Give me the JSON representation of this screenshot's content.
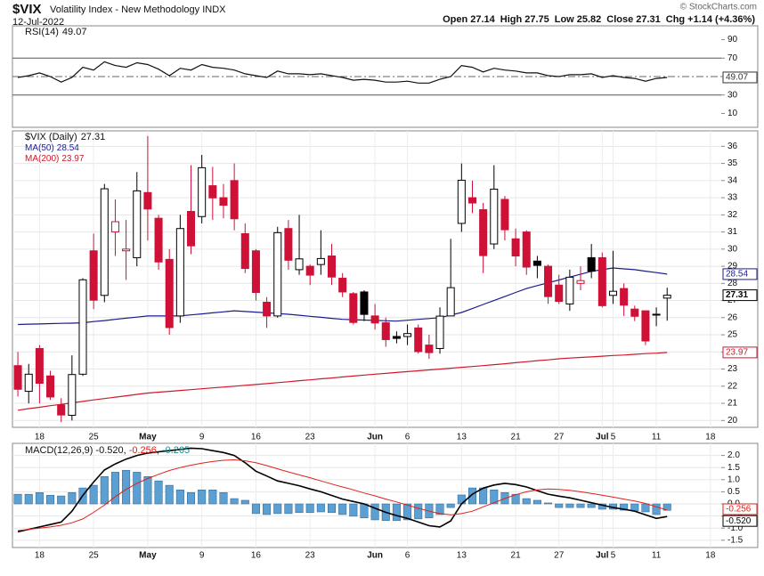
{
  "header": {
    "symbol": "$VIX",
    "name": "Volatility Index - New Methodology INDX",
    "date": "12-Jul-2022",
    "quote_labels": [
      "Open",
      "High",
      "Low",
      "Close",
      "Chg"
    ],
    "change": "+1.14 (+4.36%)",
    "credit": "© StockCharts.com"
  },
  "chart_data": [
    {
      "type": "line",
      "xlim": [
        -0.5,
        65
      ],
      "ylim": [
        -5,
        105
      ],
      "yticks": [
        10,
        30,
        50,
        70,
        90
      ],
      "bands": [
        30,
        70
      ],
      "centerline": 50,
      "series": [
        {
          "name": "RSI(14)",
          "color": "#111111",
          "values": [
            49,
            51,
            54,
            50,
            44,
            49,
            60,
            57,
            66,
            62,
            60,
            65,
            63,
            58,
            51,
            59,
            57,
            63,
            60,
            59,
            57,
            53,
            51,
            49,
            56,
            53,
            53,
            52,
            53,
            51,
            49,
            46,
            47,
            46,
            44,
            44,
            45,
            43,
            43,
            47,
            50,
            62,
            60,
            55,
            59,
            57,
            56,
            54,
            54,
            51,
            50,
            52,
            52,
            53,
            49,
            51,
            49,
            48,
            45,
            48,
            49.07
          ]
        }
      ]
    },
    {
      "type": "candlestick",
      "xlim": [
        -0.5,
        65
      ],
      "ylim": [
        19.6,
        36.9
      ],
      "grid": true,
      "yticks": [
        20,
        21,
        22,
        23,
        24,
        25,
        26,
        27,
        28,
        29,
        30,
        31,
        32,
        33,
        34,
        35,
        36
      ],
      "xticks": [
        {
          "value": 2,
          "label": "18"
        },
        {
          "value": 7,
          "label": "25"
        },
        {
          "value": 12,
          "label": "May"
        },
        {
          "value": 17,
          "label": "9"
        },
        {
          "value": 22,
          "label": "16"
        },
        {
          "value": 27,
          "label": "23"
        },
        {
          "value": 33,
          "label": "Jun"
        },
        {
          "value": 36,
          "label": "6"
        },
        {
          "value": 41,
          "label": "13"
        },
        {
          "value": 46,
          "label": "21"
        },
        {
          "value": 50,
          "label": "27"
        },
        {
          "value": 54,
          "label": "Jul"
        },
        {
          "value": 55,
          "label": "5"
        },
        {
          "value": 59,
          "label": "11"
        },
        {
          "value": 64,
          "label": "18"
        }
      ],
      "candles": {
        "name": "$VIX (Daily)",
        "up_color": "#000000",
        "down_color": "#cf1037",
        "open": [
          23.2,
          21.7,
          24.2,
          22.6,
          20.9,
          20.3,
          22.7,
          29.9,
          27.3,
          31.0,
          29.9,
          29.5,
          33.3,
          31.8,
          29.4,
          26.1,
          32.2,
          31.9,
          33.7,
          33.0,
          34.0,
          30.9,
          29.9,
          26.9,
          26.1,
          31.2,
          28.8,
          29.0,
          29.1,
          29.6,
          28.3,
          27.4,
          27.5,
          26.1,
          25.7,
          24.9,
          24.9,
          25.4,
          24.4,
          24.2,
          26.1,
          31.5,
          33.0,
          32.3,
          30.3,
          32.9,
          30.6,
          31.0,
          29.3,
          29.0,
          27.9,
          26.8,
          28.0,
          29.5,
          29.5,
          27.3,
          27.7,
          26.5,
          26.4,
          26.2,
          27.14
        ],
        "high": [
          24.0,
          23.3,
          24.4,
          22.9,
          21.3,
          23.8,
          28.3,
          30.9,
          33.8,
          32.9,
          31.7,
          34.5,
          36.6,
          32.0,
          30.0,
          32.0,
          34.9,
          35.5,
          34.8,
          33.8,
          35.0,
          31.5,
          30.0,
          27.2,
          31.3,
          31.7,
          32.0,
          29.1,
          31.1,
          30.3,
          28.6,
          27.5,
          27.6,
          26.8,
          26.0,
          25.2,
          25.6,
          25.6,
          25.0,
          26.6,
          30.6,
          35.0,
          34.0,
          32.7,
          34.9,
          33.1,
          31.2,
          31.1,
          29.6,
          29.1,
          28.5,
          28.8,
          29.0,
          30.3,
          29.8,
          29.9,
          28.0,
          26.7,
          26.4,
          26.6,
          27.75
        ],
        "low": [
          21.4,
          21.0,
          21.0,
          21.2,
          19.9,
          20.0,
          22.6,
          26.5,
          26.9,
          29.6,
          28.2,
          29.0,
          30.5,
          28.8,
          25.0,
          25.7,
          29.7,
          31.5,
          31.7,
          31.8,
          31.1,
          28.6,
          27.0,
          25.4,
          26.0,
          28.8,
          28.5,
          27.9,
          28.5,
          27.9,
          27.2,
          25.6,
          25.8,
          25.3,
          24.3,
          24.5,
          24.4,
          23.9,
          23.6,
          23.9,
          26.1,
          31.0,
          32.1,
          28.6,
          30.0,
          30.5,
          29.0,
          28.5,
          28.3,
          26.8,
          26.8,
          26.4,
          27.6,
          28.3,
          26.6,
          26.8,
          26.1,
          25.8,
          24.4,
          25.5,
          25.82
        ],
        "close": [
          21.82,
          22.7,
          22.17,
          21.37,
          20.32,
          22.68,
          28.21,
          27.02,
          33.52,
          31.6,
          30.0,
          33.4,
          32.34,
          29.25,
          25.42,
          31.2,
          30.19,
          34.75,
          32.99,
          32.56,
          31.77,
          28.87,
          27.47,
          26.1,
          30.96,
          29.35,
          29.43,
          28.48,
          29.45,
          28.37,
          27.5,
          25.72,
          26.19,
          25.69,
          24.72,
          24.79,
          25.07,
          24.02,
          23.96,
          26.09,
          27.75,
          34.02,
          32.69,
          29.62,
          33.5,
          31.13,
          29.6,
          28.95,
          29.05,
          27.23,
          26.95,
          28.36,
          28.16,
          28.71,
          26.7,
          27.54,
          26.73,
          26.08,
          24.64,
          26.17,
          27.31
        ]
      },
      "series": [
        {
          "name": "MA(50)",
          "color": "#1b1b8f",
          "values": [
            25.6,
            25.62,
            25.63,
            25.65,
            25.67,
            25.68,
            25.7,
            25.77,
            25.83,
            25.9,
            25.97,
            26.03,
            26.1,
            26.1,
            26.1,
            26.1,
            26.16,
            26.22,
            26.28,
            26.34,
            26.4,
            26.36,
            26.32,
            26.28,
            26.24,
            26.2,
            26.14,
            26.08,
            26.02,
            25.96,
            25.9,
            25.88,
            25.86,
            25.84,
            25.82,
            25.8,
            25.85,
            25.9,
            25.95,
            26.0,
            26.15,
            26.3,
            26.53,
            26.77,
            27.0,
            27.23,
            27.47,
            27.7,
            27.87,
            28.03,
            28.2,
            28.37,
            28.53,
            28.7,
            28.8,
            28.9,
            28.85,
            28.8,
            28.71,
            28.63,
            28.54
          ]
        },
        {
          "name": "MA(200)",
          "color": "#d0182c",
          "values": [
            20.6,
            20.69,
            20.77,
            20.86,
            20.94,
            21.03,
            21.11,
            21.2,
            21.28,
            21.36,
            21.44,
            21.52,
            21.6,
            21.65,
            21.7,
            21.75,
            21.8,
            21.85,
            21.9,
            21.95,
            22.0,
            22.05,
            22.1,
            22.15,
            22.21,
            22.26,
            22.32,
            22.37,
            22.43,
            22.48,
            22.54,
            22.59,
            22.65,
            22.7,
            22.75,
            22.8,
            22.85,
            22.9,
            22.95,
            23.0,
            23.05,
            23.1,
            23.15,
            23.2,
            23.26,
            23.31,
            23.37,
            23.43,
            23.49,
            23.54,
            23.6,
            23.64,
            23.68,
            23.71,
            23.75,
            23.79,
            23.82,
            23.86,
            23.9,
            23.93,
            23.97
          ]
        }
      ]
    },
    {
      "type": "macd",
      "xlim": [
        -0.5,
        65
      ],
      "ylim": [
        -1.8,
        2.5
      ],
      "grid": true,
      "legend_separator": ",",
      "yticks": [
        {
          "value": 2,
          "label": "2.0"
        },
        {
          "value": 1.5,
          "label": "1.5"
        },
        {
          "value": 1,
          "label": "1.0"
        },
        {
          "value": 0.5,
          "label": "0.5"
        },
        {
          "value": 0,
          "label": "0.0"
        },
        {
          "value": -0.5,
          "label": "-0.5"
        },
        {
          "value": -1,
          "label": "-1.0"
        },
        {
          "value": -1.5,
          "label": "-1.5"
        }
      ],
      "xticks": [
        {
          "value": 2,
          "label": "18"
        },
        {
          "value": 7,
          "label": "25"
        },
        {
          "value": 12,
          "label": "May"
        },
        {
          "value": 17,
          "label": "9"
        },
        {
          "value": 22,
          "label": "16"
        },
        {
          "value": 27,
          "label": "23"
        },
        {
          "value": 33,
          "label": "Jun"
        },
        {
          "value": 36,
          "label": "6"
        },
        {
          "value": 41,
          "label": "13"
        },
        {
          "value": 46,
          "label": "21"
        },
        {
          "value": 50,
          "label": "27"
        },
        {
          "value": 54,
          "label": "Jul"
        },
        {
          "value": 55,
          "label": "5"
        },
        {
          "value": 59,
          "label": "11"
        },
        {
          "value": 64,
          "label": "18"
        }
      ],
      "series": [
        {
          "name": "MACD(12,26,9)",
          "color": "#000000",
          "last_label": "-0.520",
          "values": [
            -1.15,
            -1.05,
            -0.95,
            -0.85,
            -0.75,
            -0.3,
            0.35,
            0.9,
            1.4,
            1.65,
            1.85,
            2.0,
            2.1,
            2.15,
            2.2,
            2.25,
            2.3,
            2.28,
            2.2,
            2.12,
            2.0,
            1.7,
            1.35,
            1.15,
            0.95,
            0.85,
            0.75,
            0.62,
            0.5,
            0.35,
            0.2,
            0.1,
            0.0,
            -0.18,
            -0.35,
            -0.48,
            -0.6,
            -0.75,
            -0.9,
            -0.95,
            -0.7,
            0.0,
            0.4,
            0.65,
            0.78,
            0.85,
            0.8,
            0.7,
            0.55,
            0.4,
            0.32,
            0.25,
            0.15,
            0.05,
            -0.05,
            -0.15,
            -0.22,
            -0.3,
            -0.45,
            -0.6,
            -0.52
          ]
        },
        {
          "color": "#e0201b",
          "values": [
            -1.1,
            -1.05,
            -1.0,
            -0.95,
            -0.88,
            -0.78,
            -0.62,
            -0.35,
            -0.05,
            0.3,
            0.6,
            0.85,
            1.05,
            1.22,
            1.38,
            1.5,
            1.6,
            1.68,
            1.75,
            1.8,
            1.82,
            1.78,
            1.7,
            1.58,
            1.45,
            1.32,
            1.2,
            1.08,
            0.95,
            0.82,
            0.7,
            0.58,
            0.45,
            0.33,
            0.2,
            0.08,
            -0.05,
            -0.18,
            -0.3,
            -0.4,
            -0.45,
            -0.4,
            -0.3,
            -0.12,
            0.05,
            0.22,
            0.38,
            0.5,
            0.58,
            0.62,
            0.6,
            0.56,
            0.5,
            0.43,
            0.36,
            0.28,
            0.2,
            0.12,
            0.02,
            -0.12,
            -0.256
          ]
        }
      ],
      "histogram": {
        "color": "#5b9fd3",
        "legend_color": "#1a8a8a",
        "values": [
          0.4,
          0.4,
          0.47,
          0.36,
          0.33,
          0.47,
          0.66,
          0.77,
          1.13,
          1.31,
          1.39,
          1.31,
          1.13,
          0.95,
          0.77,
          0.58,
          0.47,
          0.58,
          0.58,
          0.47,
          0.22,
          0.15,
          -0.4,
          -0.44,
          -0.4,
          -0.4,
          -0.36,
          -0.36,
          -0.33,
          -0.36,
          -0.44,
          -0.51,
          -0.58,
          -0.66,
          -0.69,
          -0.69,
          -0.66,
          -0.62,
          -0.58,
          -0.44,
          -0.15,
          0.37,
          0.66,
          0.66,
          0.58,
          0.47,
          0.4,
          0.22,
          0.15,
          0.04,
          -0.15,
          -0.15,
          -0.15,
          -0.15,
          -0.22,
          -0.22,
          -0.26,
          -0.29,
          -0.33,
          -0.44,
          -0.265
        ]
      }
    }
  ]
}
